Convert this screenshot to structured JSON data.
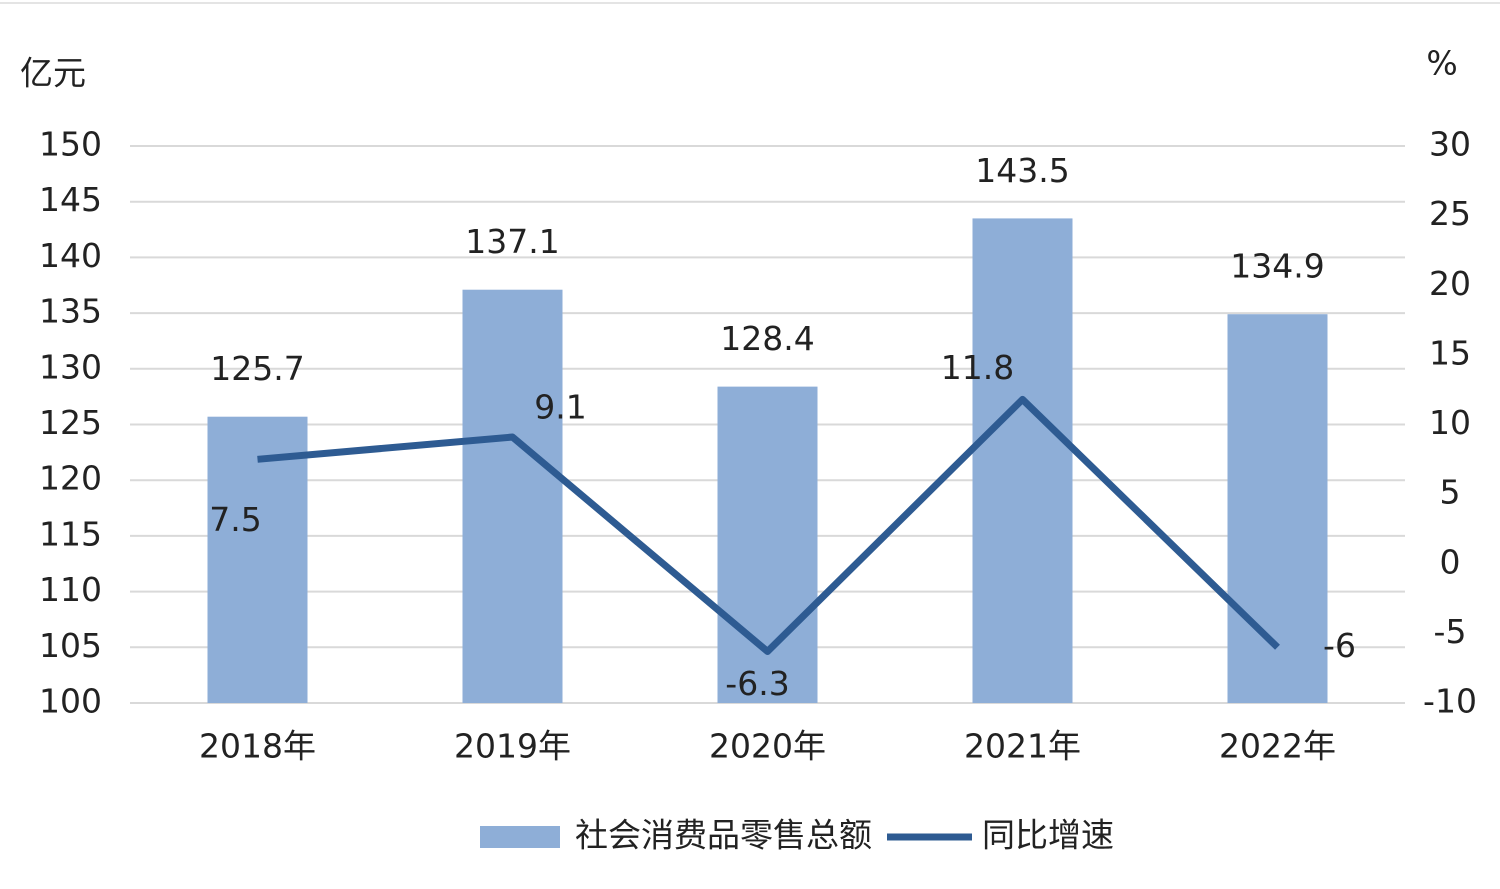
{
  "chart_data": {
    "type": "bar",
    "y_axis_label": "亿元",
    "y2_axis_label": "%",
    "categories": [
      "2018年",
      "2019年",
      "2020年",
      "2021年",
      "2022年"
    ],
    "series": [
      {
        "name": "社会消费品零售总额",
        "type": "bar",
        "color": "#8eaed7",
        "values": [
          125.7,
          137.1,
          128.4,
          143.5,
          134.9
        ]
      },
      {
        "name": "同比增速",
        "type": "line",
        "axis": "y2",
        "color": "#2e5b92",
        "values": [
          7.5,
          9.1,
          -6.3,
          11.8,
          -6
        ]
      }
    ],
    "ylim": [
      100,
      150
    ],
    "yticks": [
      100,
      105,
      110,
      115,
      120,
      125,
      130,
      135,
      140,
      145,
      150
    ],
    "y2lim": [
      -10,
      30
    ],
    "y2ticks": [
      -10,
      -5,
      0,
      5,
      10,
      15,
      20,
      25,
      30
    ],
    "grid": true,
    "legend": "bottom"
  }
}
